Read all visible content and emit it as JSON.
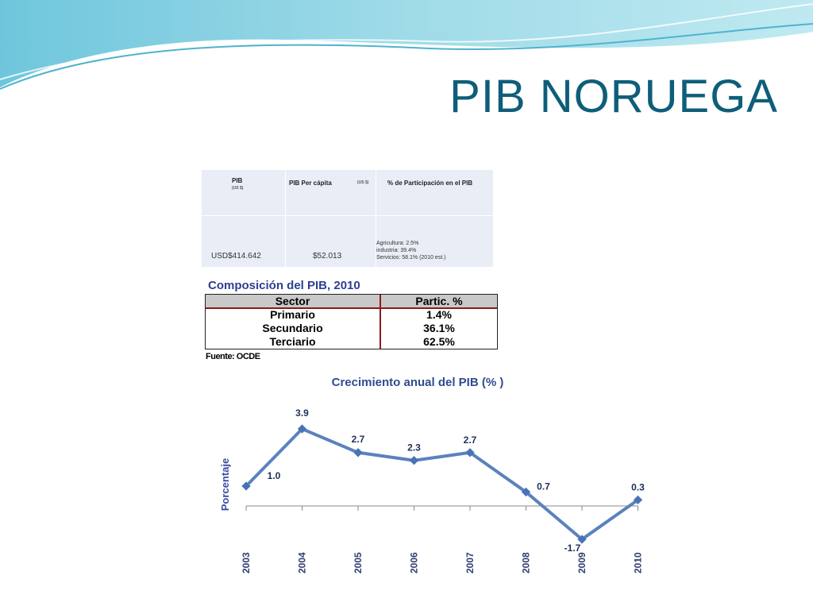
{
  "slide": {
    "title": "PIB NORUEGA"
  },
  "info_table": {
    "headers": [
      {
        "label": "PIB",
        "sub": "(US $)"
      },
      {
        "label": "PIB Per cápita",
        "sub": "(US $)"
      },
      {
        "label": "% de Participación en el PIB",
        "sub": ""
      }
    ],
    "pib_value": "USD$414.642",
    "per_capita_value": "$52.013",
    "participation": [
      "Agricultura: 2.5%",
      "industria: 39.4%",
      "Servicios: 58.1% (2010 est.)"
    ]
  },
  "composition": {
    "title": "Composición del PIB, 2010",
    "columns": [
      "Sector",
      "Partic. %"
    ],
    "rows": [
      {
        "sector": "Primario",
        "value": "1.4%"
      },
      {
        "sector": "Secundario",
        "value": "36.1%"
      },
      {
        "sector": "Terciario",
        "value": "62.5%"
      }
    ],
    "source": "Fuente: OCDE"
  },
  "colors": {
    "title": "#0e5e7a",
    "line": "#5b82be",
    "marker": "#4a73b5",
    "table_border": "#8b1c1c"
  },
  "chart_data": {
    "type": "line",
    "title": "Crecimiento anual del PIB (% )",
    "ylabel": "Porcentaje",
    "xlabel": "",
    "categories": [
      "2003",
      "2004",
      "2005",
      "2006",
      "2007",
      "2008",
      "2009",
      "2010"
    ],
    "series": [
      {
        "values": [
          1.0,
          3.9,
          2.7,
          2.3,
          2.7,
          0.7,
          -1.7,
          0.3
        ]
      }
    ],
    "data_labels": [
      "1.0",
      "3.9",
      "2.7",
      "2.3",
      "2.7",
      "0.7",
      "-1.7",
      "0.3"
    ],
    "ylim": [
      -1.7,
      3.9
    ],
    "grid": false,
    "legend": "none"
  }
}
